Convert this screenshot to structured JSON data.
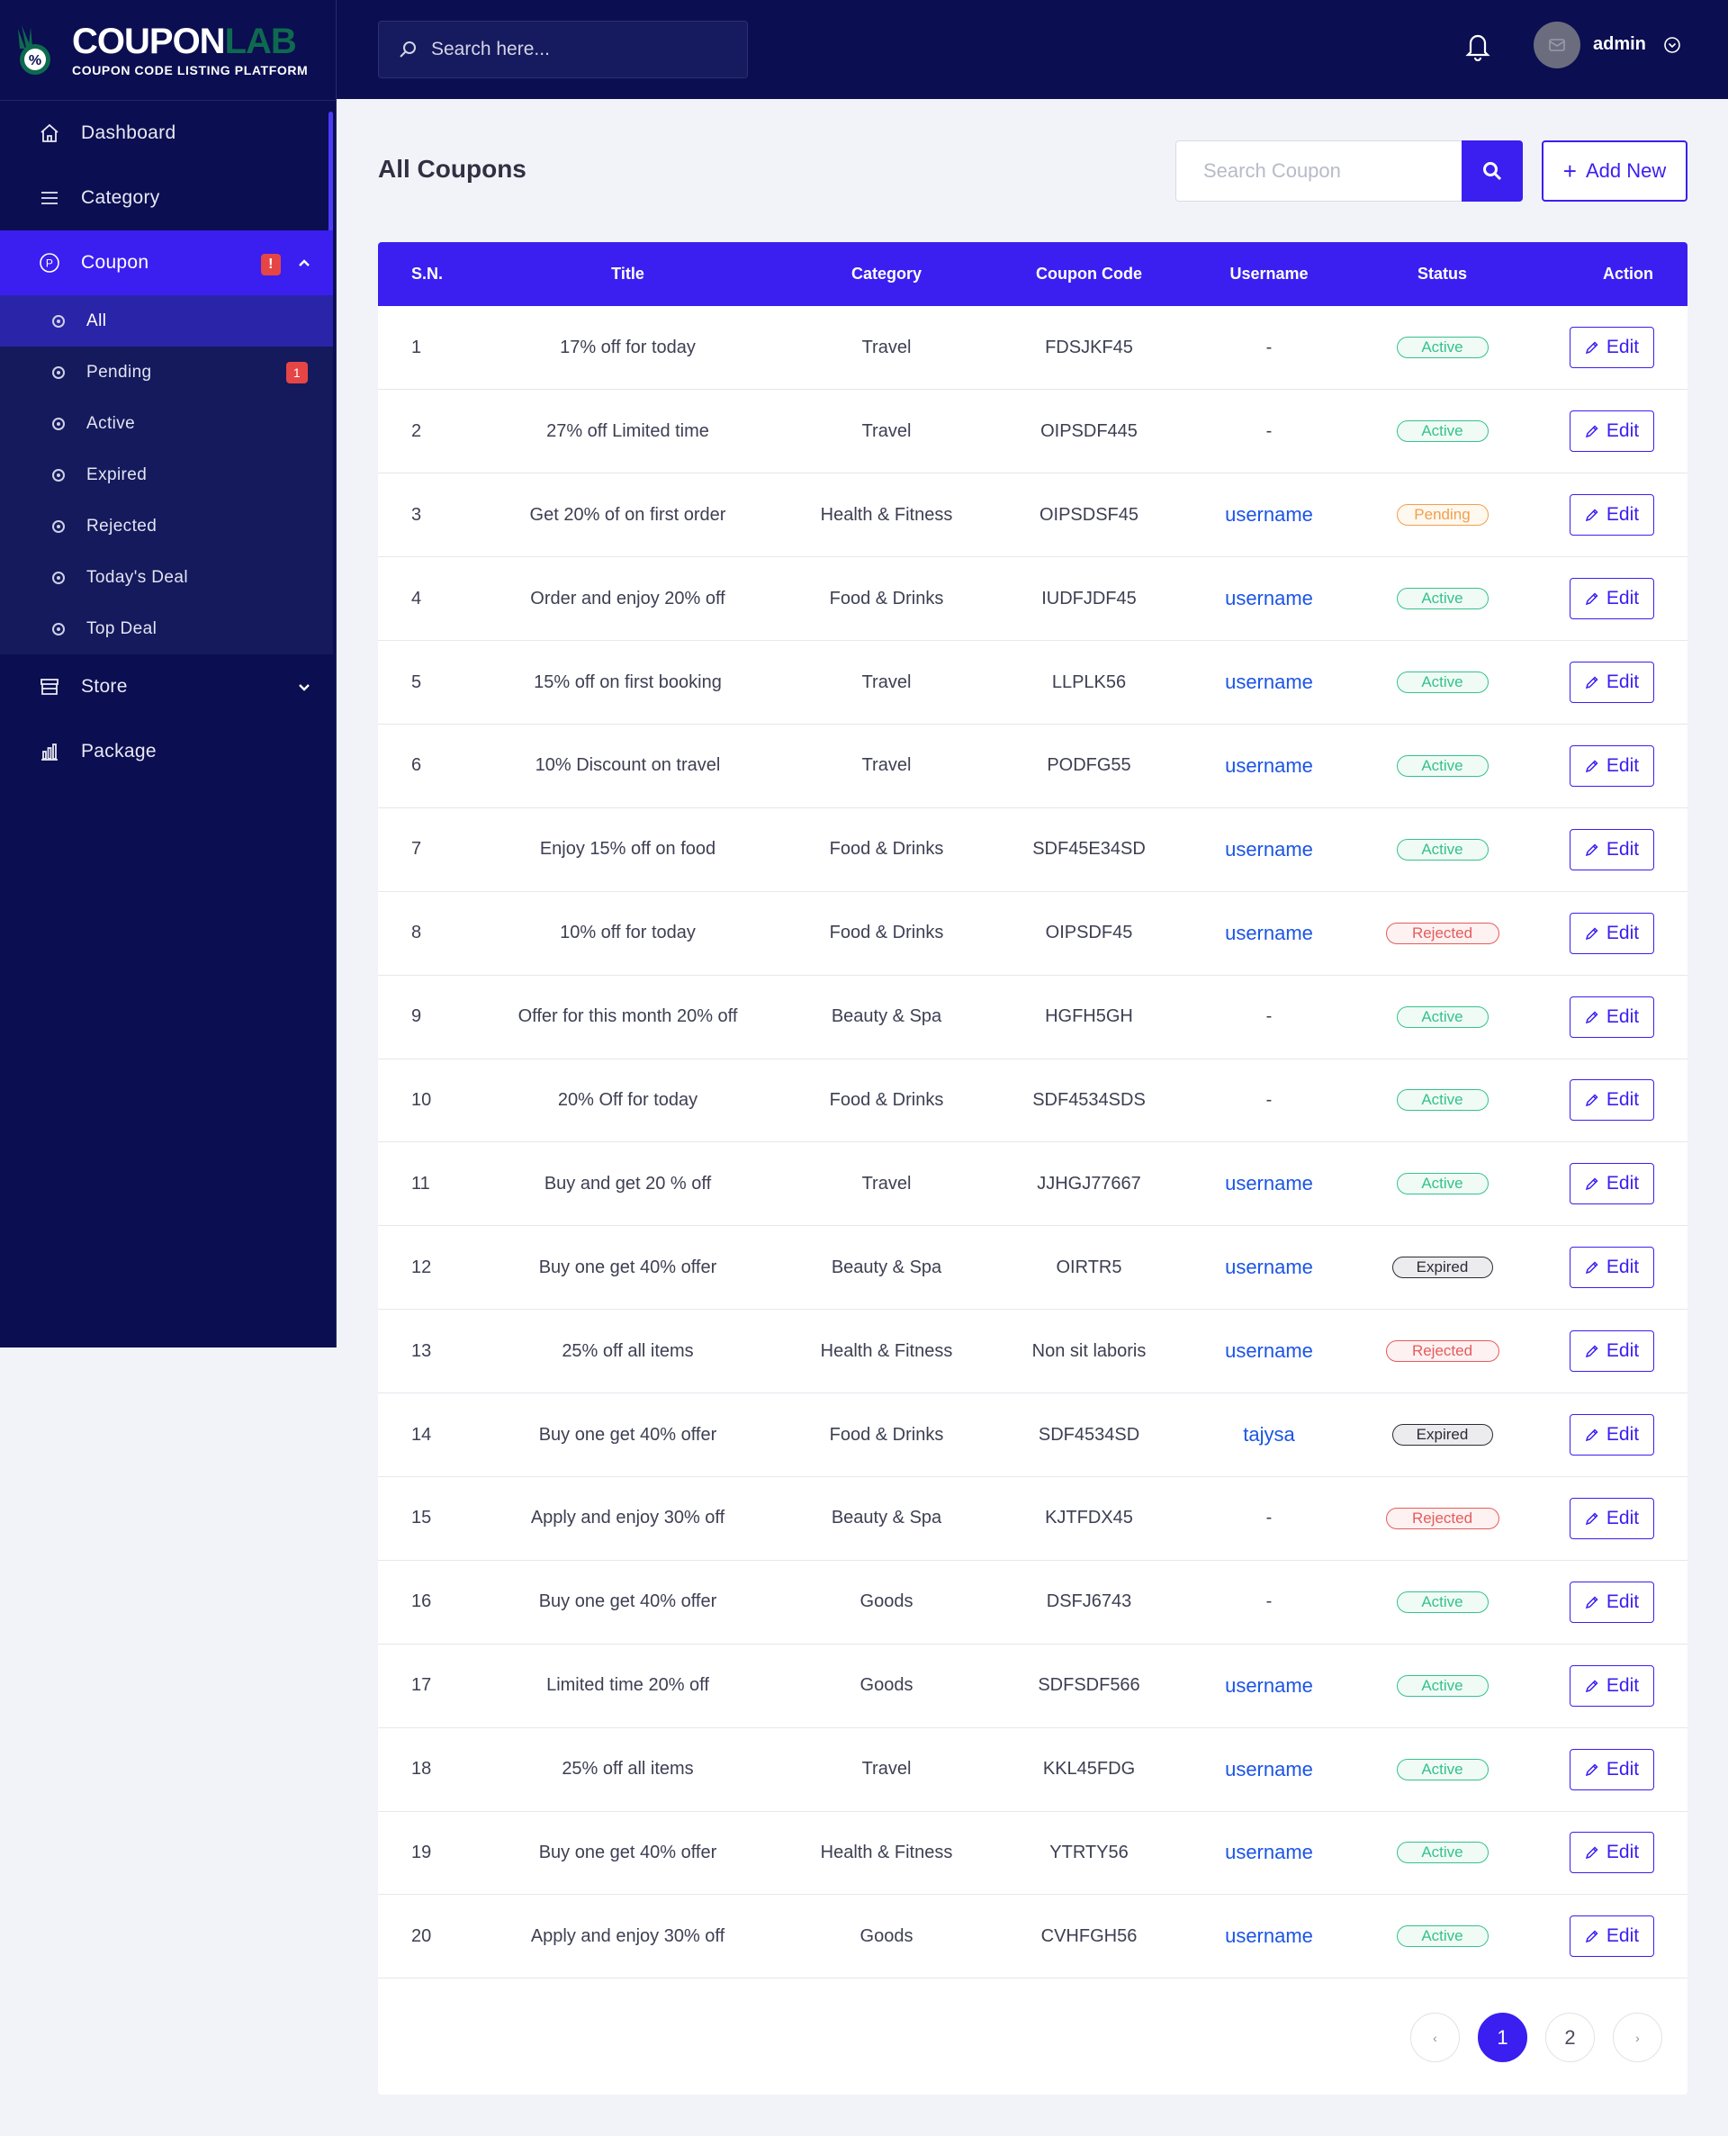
{
  "brand": {
    "title_white": "COUPON",
    "title_green": "LAB",
    "subtitle": "COUPON CODE LISTING PLATFORM"
  },
  "topbar": {
    "search_placeholder": "Search here...",
    "user_name": "admin"
  },
  "sidebar": {
    "items": [
      {
        "label": "Dashboard",
        "icon": "home-icon"
      },
      {
        "label": "Category",
        "icon": "menu-icon"
      },
      {
        "label": "Coupon",
        "icon": "coupon-icon",
        "badge": "!"
      },
      {
        "label": "Store",
        "icon": "store-icon"
      },
      {
        "label": "Package",
        "icon": "chart-icon"
      }
    ],
    "coupon_sub": [
      {
        "label": "All"
      },
      {
        "label": "Pending",
        "badge": "1"
      },
      {
        "label": "Active"
      },
      {
        "label": "Expired"
      },
      {
        "label": "Rejected"
      },
      {
        "label": "Today's Deal"
      },
      {
        "label": "Top Deal"
      }
    ]
  },
  "main": {
    "title": "All Coupons",
    "search_placeholder": "Search Coupon",
    "add_label": "Add New",
    "edit_label": "Edit",
    "columns": [
      "S.N.",
      "Title",
      "Category",
      "Coupon Code",
      "Username",
      "Status",
      "Action"
    ],
    "rows": [
      {
        "sn": "1",
        "title": "17% off for today",
        "category": "Travel",
        "code": "FDSJKF45",
        "user": "-",
        "status": "Active"
      },
      {
        "sn": "2",
        "title": "27% off Limited time",
        "category": "Travel",
        "code": "OIPSDF445",
        "user": "-",
        "status": "Active"
      },
      {
        "sn": "3",
        "title": "Get 20% of on first order",
        "category": "Health & Fitness",
        "code": "OIPSDSF45",
        "user": "username",
        "status": "Pending"
      },
      {
        "sn": "4",
        "title": "Order and enjoy 20% off",
        "category": "Food & Drinks",
        "code": "IUDFJDF45",
        "user": "username",
        "status": "Active"
      },
      {
        "sn": "5",
        "title": "15% off on first booking",
        "category": "Travel",
        "code": "LLPLK56",
        "user": "username",
        "status": "Active"
      },
      {
        "sn": "6",
        "title": "10% Discount on travel",
        "category": "Travel",
        "code": "PODFG55",
        "user": "username",
        "status": "Active"
      },
      {
        "sn": "7",
        "title": "Enjoy 15% off on food",
        "category": "Food & Drinks",
        "code": "SDF45E34SD",
        "user": "username",
        "status": "Active"
      },
      {
        "sn": "8",
        "title": "10% off for today",
        "category": "Food & Drinks",
        "code": "OIPSDF45",
        "user": "username",
        "status": "Rejected"
      },
      {
        "sn": "9",
        "title": "Offer for this month 20% off",
        "category": "Beauty & Spa",
        "code": "HGFH5GH",
        "user": "-",
        "status": "Active"
      },
      {
        "sn": "10",
        "title": "20% Off for today",
        "category": "Food & Drinks",
        "code": "SDF4534SDS",
        "user": "-",
        "status": "Active"
      },
      {
        "sn": "11",
        "title": "Buy and get 20 % off",
        "category": "Travel",
        "code": "JJHGJ77667",
        "user": "username",
        "status": "Active"
      },
      {
        "sn": "12",
        "title": "Buy one get 40% offer",
        "category": "Beauty & Spa",
        "code": "OIRTR5",
        "user": "username",
        "status": "Expired"
      },
      {
        "sn": "13",
        "title": "25% off all items",
        "category": "Health & Fitness",
        "code": "Non sit laboris",
        "user": "username",
        "status": "Rejected"
      },
      {
        "sn": "14",
        "title": "Buy one get 40% offer",
        "category": "Food & Drinks",
        "code": "SDF4534SD",
        "user": "tajysa",
        "status": "Expired"
      },
      {
        "sn": "15",
        "title": "Apply and enjoy 30% off",
        "category": "Beauty & Spa",
        "code": "KJTFDX45",
        "user": "-",
        "status": "Rejected"
      },
      {
        "sn": "16",
        "title": "Buy one get 40% offer",
        "category": "Goods",
        "code": "DSFJ6743",
        "user": "-",
        "status": "Active"
      },
      {
        "sn": "17",
        "title": "Limited time 20% off",
        "category": "Goods",
        "code": "SDFSDF566",
        "user": "username",
        "status": "Active"
      },
      {
        "sn": "18",
        "title": "25% off all items",
        "category": "Travel",
        "code": "KKL45FDG",
        "user": "username",
        "status": "Active"
      },
      {
        "sn": "19",
        "title": "Buy one get 40% offer",
        "category": "Health & Fitness",
        "code": "YTRTY56",
        "user": "username",
        "status": "Active"
      },
      {
        "sn": "20",
        "title": "Apply and enjoy 30% off",
        "category": "Goods",
        "code": "CVHFGH56",
        "user": "username",
        "status": "Active"
      }
    ]
  },
  "pagination": {
    "prev": "‹",
    "next": "›",
    "pages": [
      "1",
      "2"
    ],
    "current": "1"
  },
  "colors": {
    "navy": "#0b0e50",
    "accent": "#3a1ff0",
    "active": "#35c28a",
    "pending": "#f0a04d",
    "rejected": "#e45c5c",
    "expired": "#2b2b35"
  }
}
